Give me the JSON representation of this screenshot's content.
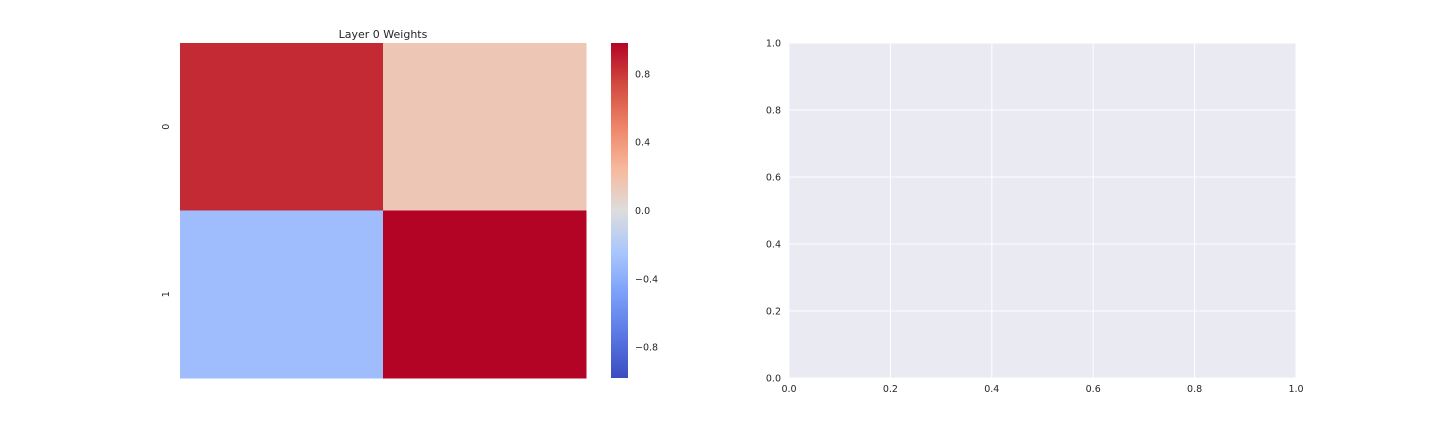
{
  "chart_data": [
    {
      "type": "heatmap",
      "title": "Layer 0 Weights",
      "row_labels": [
        "0",
        "1"
      ],
      "col_labels": [
        "",
        ""
      ],
      "values": [
        [
          0.85,
          0.15
        ],
        [
          -0.3,
          0.98
        ]
      ],
      "colormap": "coolwarm",
      "vmin": -0.98,
      "vmax": 0.98,
      "colorbar": {
        "ticks": [
          0.8,
          0.4,
          0.0,
          -0.4,
          -0.8
        ],
        "tick_labels": [
          "0.8",
          "0.4",
          "0.0",
          "−0.4",
          "−0.8"
        ]
      },
      "colors": {
        "low": "#3b4cc0",
        "mid": "#dddddd",
        "high": "#b40426"
      }
    },
    {
      "type": "line",
      "title": "",
      "series": [],
      "xlim": [
        0.0,
        1.0
      ],
      "ylim": [
        0.0,
        1.0
      ],
      "x_ticks": [
        "0.0",
        "0.2",
        "0.4",
        "0.6",
        "0.8",
        "1.0"
      ],
      "y_ticks": [
        "0.0",
        "0.2",
        "0.4",
        "0.6",
        "0.8",
        "1.0"
      ],
      "grid": true,
      "background": "#eaeaf2",
      "grid_color": "#ffffff"
    }
  ]
}
